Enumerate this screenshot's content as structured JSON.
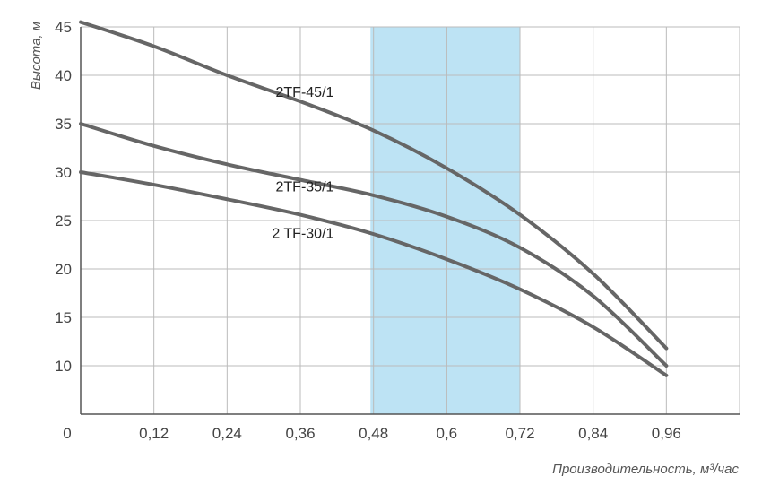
{
  "chart_data": {
    "type": "line",
    "ylabel": "Высота, м",
    "xlabel": "Производительность, м³/час",
    "x_tick_labels": [
      "0",
      "0,12",
      "0,24",
      "0,36",
      "0,48",
      "0,6",
      "0,72",
      "0,84",
      "0,96"
    ],
    "y_tick_labels": [
      "10",
      "15",
      "20",
      "25",
      "30",
      "35",
      "40",
      "45"
    ],
    "x_ticks": [
      0,
      0.12,
      0.24,
      0.36,
      0.48,
      0.6,
      0.72,
      0.84,
      0.96
    ],
    "y_ticks": [
      10,
      15,
      20,
      25,
      30,
      35,
      40,
      45
    ],
    "xlim": [
      0,
      1.08
    ],
    "ylim": [
      5,
      45
    ],
    "grid": true,
    "highlight_band": {
      "x_from": 0.475,
      "x_to": 0.72,
      "color": "#bde3f4",
      "divider_x": 0.6
    },
    "colors": {
      "curve": "#666666",
      "grid": "#bbbbbb",
      "axis": "#555555"
    },
    "series": [
      {
        "name": "2TF-45/1",
        "x": [
          0,
          0.12,
          0.24,
          0.36,
          0.48,
          0.6,
          0.72,
          0.84,
          0.96
        ],
        "y": [
          45.5,
          43,
          40,
          37.3,
          34.3,
          30.4,
          25.6,
          19.5,
          11.8
        ]
      },
      {
        "name": "2TF-35/1",
        "x": [
          0,
          0.12,
          0.24,
          0.36,
          0.48,
          0.6,
          0.72,
          0.84,
          0.96
        ],
        "y": [
          35,
          32.7,
          30.8,
          29.2,
          27.6,
          25.4,
          22.2,
          17.2,
          10
        ]
      },
      {
        "name": "2 TF-30/1",
        "x": [
          0,
          0.12,
          0.24,
          0.36,
          0.48,
          0.6,
          0.72,
          0.84,
          0.96
        ],
        "y": [
          30,
          28.7,
          27.2,
          25.6,
          23.6,
          21,
          17.9,
          14,
          9
        ]
      }
    ]
  }
}
